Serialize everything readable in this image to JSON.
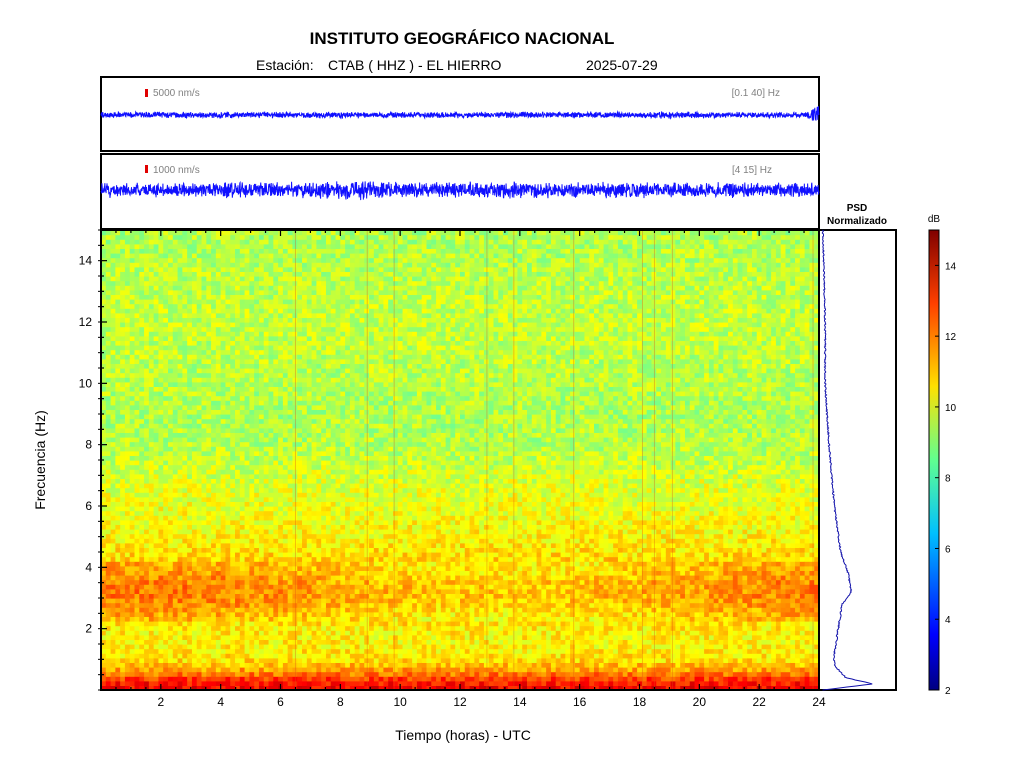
{
  "header": {
    "title": "INSTITUTO GEOGRÁFICO NACIONAL",
    "station_label": "Estación:",
    "station": "CTAB ( HHZ ) - EL HIERRO",
    "date": "2025-07-29"
  },
  "panels": {
    "trace1": {
      "scale_label": "5000 nm/s",
      "band": "[0.1 40] Hz"
    },
    "trace2": {
      "scale_label": "1000 nm/s",
      "band": "[4 15] Hz"
    },
    "psd": {
      "title_line1": "PSD",
      "title_line2": "Normalizado"
    },
    "colorbar": {
      "unit": "dB"
    }
  },
  "chart_data": [
    {
      "type": "line",
      "name": "trace-broadband",
      "x": [
        0,
        2,
        4,
        6,
        8,
        10,
        12,
        14,
        16,
        18,
        19,
        20,
        22,
        23.6,
        23.9,
        24
      ],
      "values": [
        1,
        1,
        1,
        1,
        1,
        1,
        1,
        1,
        1,
        1.05,
        1.2,
        1,
        0.95,
        1,
        3.2,
        2.6
      ],
      "xlim": [
        0,
        24
      ],
      "scale_label": "5000 nm/s",
      "band": "[0.1 40] Hz",
      "color": "#1010ff"
    },
    {
      "type": "line",
      "name": "trace-filtered",
      "x": [
        0,
        2,
        4,
        6,
        7,
        8,
        8.7,
        10,
        12,
        14,
        16,
        18,
        20,
        22,
        24
      ],
      "values": [
        1,
        1,
        1.05,
        1.1,
        1.2,
        1.25,
        1.6,
        1.15,
        1.1,
        1.15,
        1.05,
        1.1,
        1.05,
        1,
        1
      ],
      "xlim": [
        0,
        24
      ],
      "scale_label": "1000 nm/s",
      "band": "[4 15] Hz",
      "color": "#1010ff"
    },
    {
      "type": "heatmap",
      "name": "spectrogram",
      "xlabel": "Tiempo (horas) - UTC",
      "ylabel": "Frecuencia  (Hz)",
      "xlim": [
        0,
        24
      ],
      "ylim": [
        0,
        15
      ],
      "x_ticks": [
        2,
        4,
        6,
        8,
        10,
        12,
        14,
        16,
        18,
        20,
        22,
        24
      ],
      "y_ticks": [
        2,
        4,
        6,
        8,
        10,
        12,
        14
      ],
      "freq": [
        0,
        0.3,
        0.6,
        1,
        1.5,
        2,
        2.5,
        3,
        3.5,
        4,
        5,
        6,
        7,
        8,
        9,
        10,
        11,
        12,
        13,
        14,
        15
      ],
      "db": [
        13.5,
        13,
        11.5,
        10.5,
        10.2,
        10.3,
        10.8,
        11.3,
        11.3,
        10.8,
        10.2,
        9.9,
        9.6,
        9.2,
        9.1,
        9.2,
        9.3,
        9.4,
        9.3,
        9.2,
        9.1
      ],
      "clim": [
        2,
        15
      ],
      "vertical_streaks_hours": [
        6.5,
        8.9,
        9.8,
        12.9,
        13.8,
        15.8,
        18.1,
        18.5,
        19.1,
        23.8
      ]
    },
    {
      "type": "line",
      "name": "psd-normalizado",
      "title": "PSD Normalizado",
      "freq": [
        0,
        0.2,
        0.4,
        0.8,
        1.2,
        2,
        2.8,
        3.2,
        3.8,
        4.5,
        6,
        8,
        10,
        12,
        14,
        15
      ],
      "values": [
        0.05,
        0.7,
        0.35,
        0.2,
        0.2,
        0.25,
        0.3,
        0.42,
        0.38,
        0.28,
        0.2,
        0.13,
        0.08,
        0.08,
        0.06,
        0.05
      ],
      "ylim": [
        0,
        15
      ],
      "color": "#1010aa"
    }
  ],
  "colorbar": {
    "unit": "dB",
    "ticks": [
      2,
      4,
      6,
      8,
      10,
      12,
      14
    ],
    "range": [
      2,
      15
    ]
  }
}
